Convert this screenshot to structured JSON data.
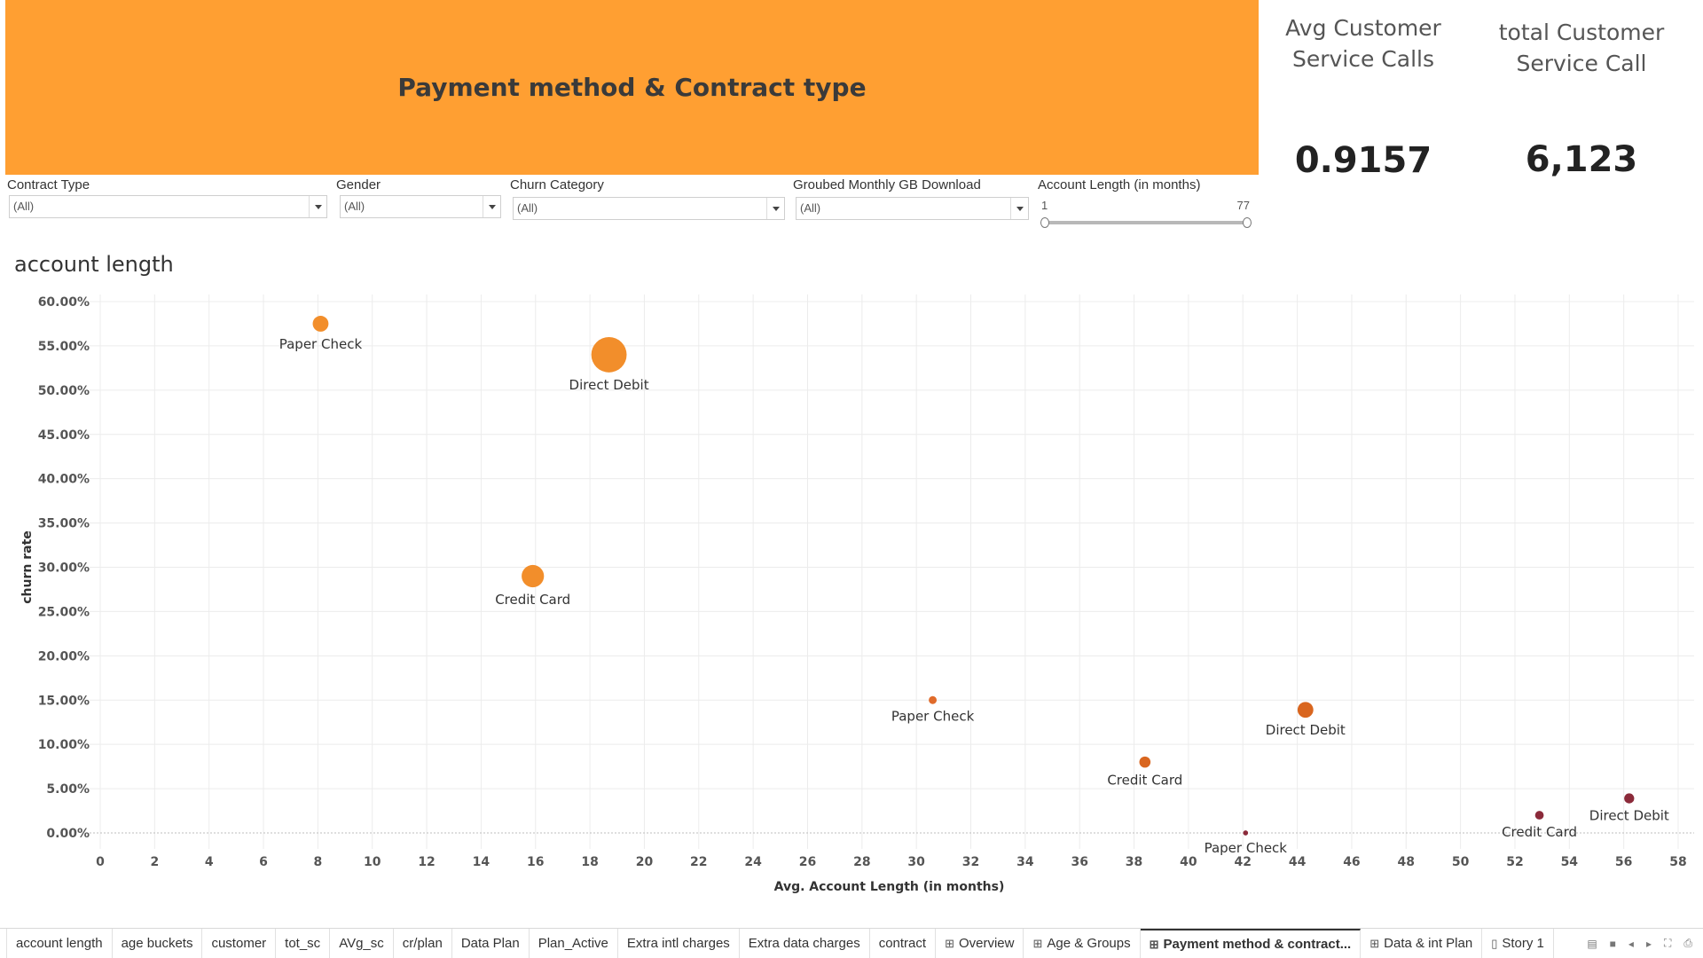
{
  "banner": {
    "title": "Payment method & Contract type"
  },
  "kpis": [
    {
      "label": "Avg Customer Service Calls",
      "value": "0.9157"
    },
    {
      "label": "total Customer Service Call",
      "value": "6,123"
    }
  ],
  "filters": [
    {
      "label": "Contract Type",
      "value": "(All)"
    },
    {
      "label": "Gender",
      "value": "(All)"
    },
    {
      "label": "Churn Category",
      "value": "(All)"
    },
    {
      "label": "Groubed Monthly GB Download",
      "value": "(All)"
    }
  ],
  "slider": {
    "label": "Account Length (in months)",
    "min": "1",
    "max": "77"
  },
  "section_title": "account length",
  "chart_data": {
    "type": "scatter",
    "title": "account length",
    "xlabel": "Avg. Account Length (in months)",
    "ylabel": "churn rate",
    "xlim": [
      0,
      58
    ],
    "ylim": [
      0,
      60
    ],
    "x_ticks": [
      "0",
      "2",
      "4",
      "6",
      "8",
      "10",
      "12",
      "14",
      "16",
      "18",
      "20",
      "22",
      "24",
      "26",
      "28",
      "30",
      "32",
      "34",
      "36",
      "38",
      "40",
      "42",
      "44",
      "46",
      "48",
      "50",
      "52",
      "54",
      "56",
      "58"
    ],
    "y_ticks": [
      "0.00%",
      "5.00%",
      "10.00%",
      "15.00%",
      "20.00%",
      "25.00%",
      "30.00%",
      "35.00%",
      "40.00%",
      "45.00%",
      "50.00%",
      "55.00%",
      "60.00%"
    ],
    "grid": true,
    "points": [
      {
        "label": "Paper Check",
        "x": 8.1,
        "y": 57.5,
        "size": 2,
        "color": "#f28e2b"
      },
      {
        "label": "Direct Debit",
        "x": 18.7,
        "y": 54.0,
        "size": 10,
        "color": "#f28e2b"
      },
      {
        "label": "Credit Card",
        "x": 15.9,
        "y": 29.0,
        "size": 4,
        "color": "#f28e2b"
      },
      {
        "label": "Paper Check",
        "x": 30.6,
        "y": 15.0,
        "size": 0.5,
        "color": "#e06b2b"
      },
      {
        "label": "Direct Debit",
        "x": 44.3,
        "y": 13.9,
        "size": 2,
        "color": "#d9661f"
      },
      {
        "label": "Credit Card",
        "x": 38.4,
        "y": 8.0,
        "size": 1,
        "color": "#d9661f"
      },
      {
        "label": "Paper Check",
        "x": 42.1,
        "y": 0.0,
        "size": 0.2,
        "color": "#8b2a3a"
      },
      {
        "label": "Credit Card",
        "x": 52.9,
        "y": 2.0,
        "size": 0.6,
        "color": "#8b2a3a"
      },
      {
        "label": "Direct Debit",
        "x": 56.2,
        "y": 3.9,
        "size": 0.8,
        "color": "#8b2a3a"
      }
    ]
  },
  "tabs": [
    {
      "label": "account length",
      "icon": ""
    },
    {
      "label": "age buckets",
      "icon": ""
    },
    {
      "label": "customer",
      "icon": ""
    },
    {
      "label": "tot_sc",
      "icon": ""
    },
    {
      "label": "AVg_sc",
      "icon": ""
    },
    {
      "label": "cr/plan",
      "icon": ""
    },
    {
      "label": "Data Plan",
      "icon": ""
    },
    {
      "label": "Plan_Active",
      "icon": ""
    },
    {
      "label": "Extra intl charges",
      "icon": ""
    },
    {
      "label": "Extra data charges",
      "icon": ""
    },
    {
      "label": "contract",
      "icon": ""
    },
    {
      "label": "Overview",
      "icon": "⊞"
    },
    {
      "label": "Age & Groups",
      "icon": "⊞"
    },
    {
      "label": "Payment method & contract...",
      "icon": "⊞",
      "active": true
    },
    {
      "label": "Data & int Plan",
      "icon": "⊞"
    },
    {
      "label": "Story 1",
      "icon": "▯"
    }
  ]
}
